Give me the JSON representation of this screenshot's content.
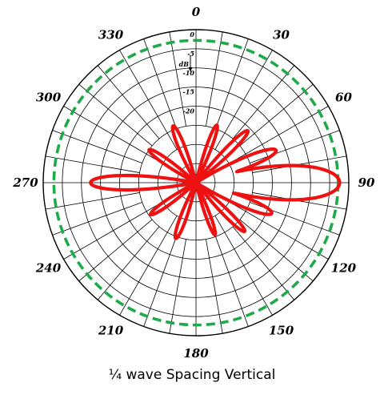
{
  "chart_data": {
    "type": "polar",
    "caption": "¼ wave Spacing Vertical",
    "angle_labels": [
      "0",
      "30",
      "60",
      "90",
      "120",
      "150",
      "180",
      "210",
      "240",
      "270",
      "300",
      "330"
    ],
    "radial_ticks": [
      {
        "db": 0,
        "label": "0"
      },
      {
        "db": -5,
        "label": "-5"
      },
      {
        "db": -10,
        "label": "-10"
      },
      {
        "db": -15,
        "label": "-15"
      },
      {
        "db": -20,
        "label": "-20"
      }
    ],
    "radial_unit": "dB",
    "rlim_db": [
      -40,
      0
    ],
    "angular_grid_step_deg": 10,
    "reference": {
      "level_db": -2.8,
      "color": "#1faa4a",
      "style": "dashed"
    },
    "pattern": {
      "color": "#ee1111",
      "lobes": [
        {
          "angle_deg": 90,
          "db": -2.4,
          "half_width_deg": 9
        },
        {
          "angle_deg": 270,
          "db": -12.4,
          "half_width_deg": 6
        },
        {
          "angle_deg": 68,
          "db": -17.4,
          "half_width_deg": 6
        },
        {
          "angle_deg": 112,
          "db": -18.6,
          "half_width_deg": 6
        },
        {
          "angle_deg": 45,
          "db": -20.8,
          "half_width_deg": 5
        },
        {
          "angle_deg": 135,
          "db": -22.0,
          "half_width_deg": 5
        },
        {
          "angle_deg": 20,
          "db": -24.0,
          "half_width_deg": 5
        },
        {
          "angle_deg": 160,
          "db": -25.5,
          "half_width_deg": 5
        },
        {
          "angle_deg": 305,
          "db": -25.0,
          "half_width_deg": 6
        },
        {
          "angle_deg": 235,
          "db": -25.5,
          "half_width_deg": 6
        },
        {
          "angle_deg": 338,
          "db": -24.0,
          "half_width_deg": 6
        },
        {
          "angle_deg": 200,
          "db": -24.5,
          "half_width_deg": 6
        }
      ]
    }
  }
}
